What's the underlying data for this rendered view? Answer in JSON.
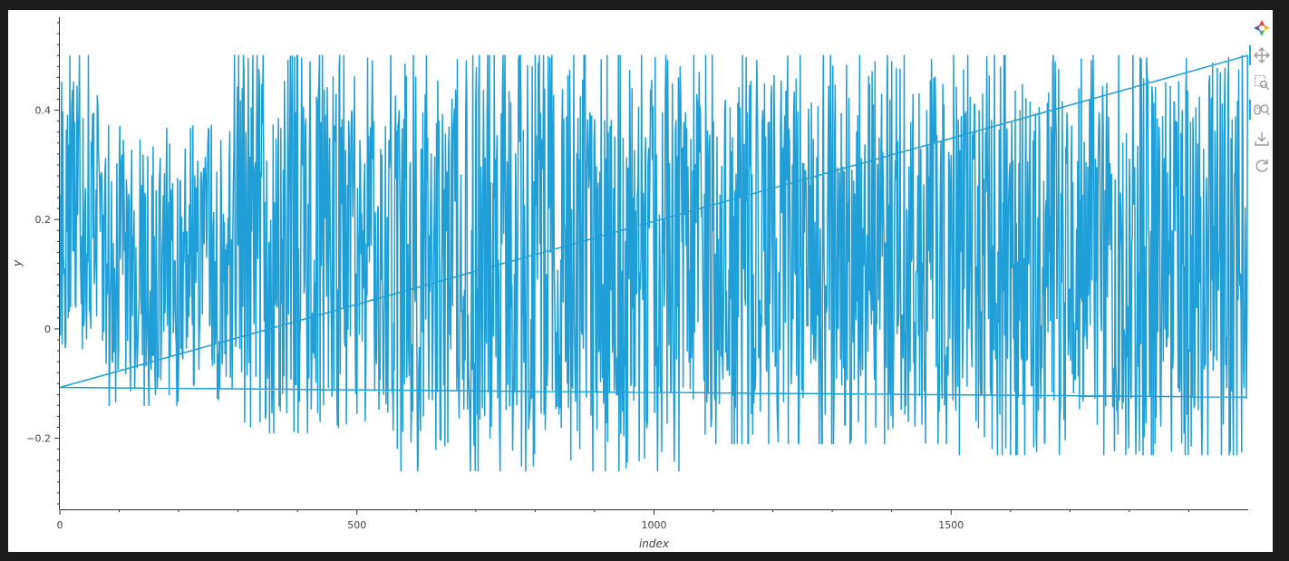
{
  "chart_data": {
    "type": "line",
    "title": "",
    "xlabel": "index",
    "ylabel": "y",
    "xlim": [
      0,
      2000
    ],
    "ylim": [
      -0.33,
      0.57
    ],
    "x_ticks": [
      0,
      500,
      1000,
      1500
    ],
    "y_ticks": [
      -0.2,
      0,
      0.2,
      0.4
    ],
    "x_tick_labels": [
      "0",
      "500",
      "1000",
      "1500"
    ],
    "y_tick_labels": [
      "−0.2",
      "0",
      "0.2",
      "0.4"
    ],
    "grid": false,
    "legend": "none",
    "series": [
      {
        "color": "#1f9fd6",
        "n_points": 2000,
        "y_max": 0.5,
        "y_min": -0.26,
        "segments": [
          {
            "x_range": [
              0,
              65
            ],
            "y_low": -0.05,
            "y_high": 0.5
          },
          {
            "x_range": [
              65,
              290
            ],
            "y_low": -0.14,
            "y_high": 0.36
          },
          {
            "x_range": [
              290,
              540
            ],
            "y_low": -0.19,
            "y_high": 0.5
          },
          {
            "x_range": [
              540,
              1060
            ],
            "y_low": -0.26,
            "y_high": 0.5
          },
          {
            "x_range": [
              1060,
              1500
            ],
            "y_low": -0.21,
            "y_high": 0.5
          },
          {
            "x_range": [
              1500,
              1998
            ],
            "y_low": -0.23,
            "y_high": 0.5
          }
        ],
        "wrap_line": {
          "from": [
            0,
            -0.107
          ],
          "to": [
            1998,
            -0.125
          ]
        }
      }
    ]
  },
  "toolbar": {
    "logo_icon": "bokeh-logo-icon",
    "tools": [
      "pan-icon",
      "box-zoom-icon",
      "wheel-zoom-icon",
      "save-icon",
      "reset-icon"
    ],
    "accent": "#26aae1"
  }
}
